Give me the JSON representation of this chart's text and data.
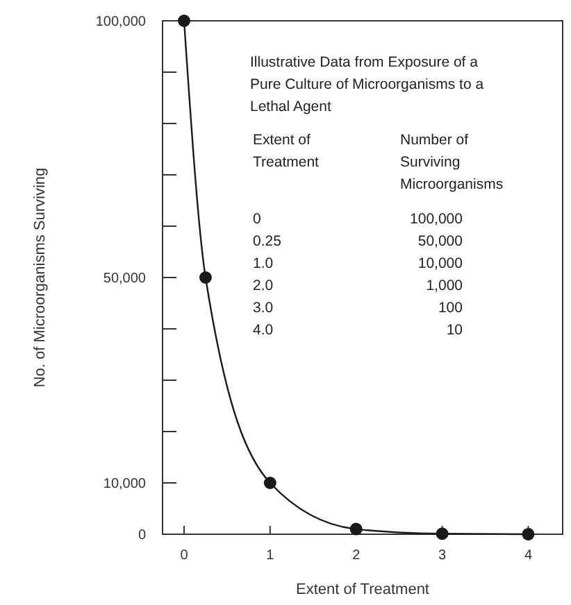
{
  "chart_data": {
    "type": "line",
    "xlabel": "Extent of Treatment",
    "ylabel": "No. of Microorganisms Surviving",
    "x": [
      0,
      0.25,
      1,
      2,
      3,
      4
    ],
    "series": [
      {
        "color": "#1a1a1a",
        "values": [
          100000,
          50000,
          10000,
          1000,
          100,
          10
        ]
      }
    ],
    "value_labels": [
      "100,000",
      "50,000",
      "10,000",
      "1,000",
      "100",
      "10"
    ],
    "xlim": [
      -0.25,
      4.4
    ],
    "xticks": [
      0,
      1,
      2,
      3,
      4
    ],
    "ylim": [
      0,
      100000
    ],
    "yticks": [
      {
        "value": 0,
        "label": "0"
      },
      {
        "value": 10000,
        "label": "10,000"
      },
      {
        "value": 20000,
        "label": null
      },
      {
        "value": 30000,
        "label": null
      },
      {
        "value": 40000,
        "label": null
      },
      {
        "value": 50000,
        "label": "50,000"
      },
      {
        "value": 60000,
        "label": null
      },
      {
        "value": 70000,
        "label": null
      },
      {
        "value": 80000,
        "label": null
      },
      {
        "value": 90000,
        "label": null
      },
      {
        "value": 100000,
        "label": "100,000"
      }
    ],
    "marker": "circle",
    "line_style": "solid",
    "annotations": [
      "Illustrative Data from Exposure of a Pure Culture of Microorganisms to a Lethal Agent",
      "Extent of Treatment",
      "Number of Surviving Microorganisms",
      "0",
      "0.25",
      "1.0",
      "2.0",
      "3.0",
      "4.0"
    ]
  }
}
